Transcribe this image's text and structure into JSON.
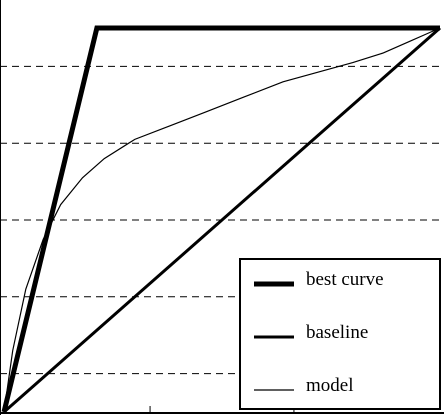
{
  "chart_data": {
    "type": "line",
    "title": "",
    "xlabel": "",
    "ylabel": "",
    "xlim": [
      0,
      1
    ],
    "ylim": [
      0,
      1
    ],
    "grid": {
      "horizontal_dashed": true,
      "y_values": [
        0.1,
        0.3,
        0.5,
        0.7,
        0.9
      ]
    },
    "x_ticks": [
      0.335,
      0.665
    ],
    "legend_position": "bottom-right",
    "series": [
      {
        "name": "best curve",
        "style": "thick",
        "x": [
          0,
          0.213,
          1
        ],
        "y": [
          0,
          1,
          1
        ]
      },
      {
        "name": "baseline",
        "style": "medium",
        "x": [
          0,
          1
        ],
        "y": [
          0,
          1
        ]
      },
      {
        "name": "model",
        "style": "thin",
        "x": [
          0,
          0.02,
          0.05,
          0.09,
          0.13,
          0.18,
          0.23,
          0.3,
          0.38,
          0.46,
          0.55,
          0.64,
          0.72,
          0.8,
          0.87,
          0.93,
          0.97,
          1.0
        ],
        "y": [
          0,
          0.16,
          0.32,
          0.45,
          0.54,
          0.61,
          0.66,
          0.71,
          0.745,
          0.78,
          0.82,
          0.86,
          0.885,
          0.91,
          0.935,
          0.965,
          0.985,
          1.0
        ]
      }
    ]
  }
}
